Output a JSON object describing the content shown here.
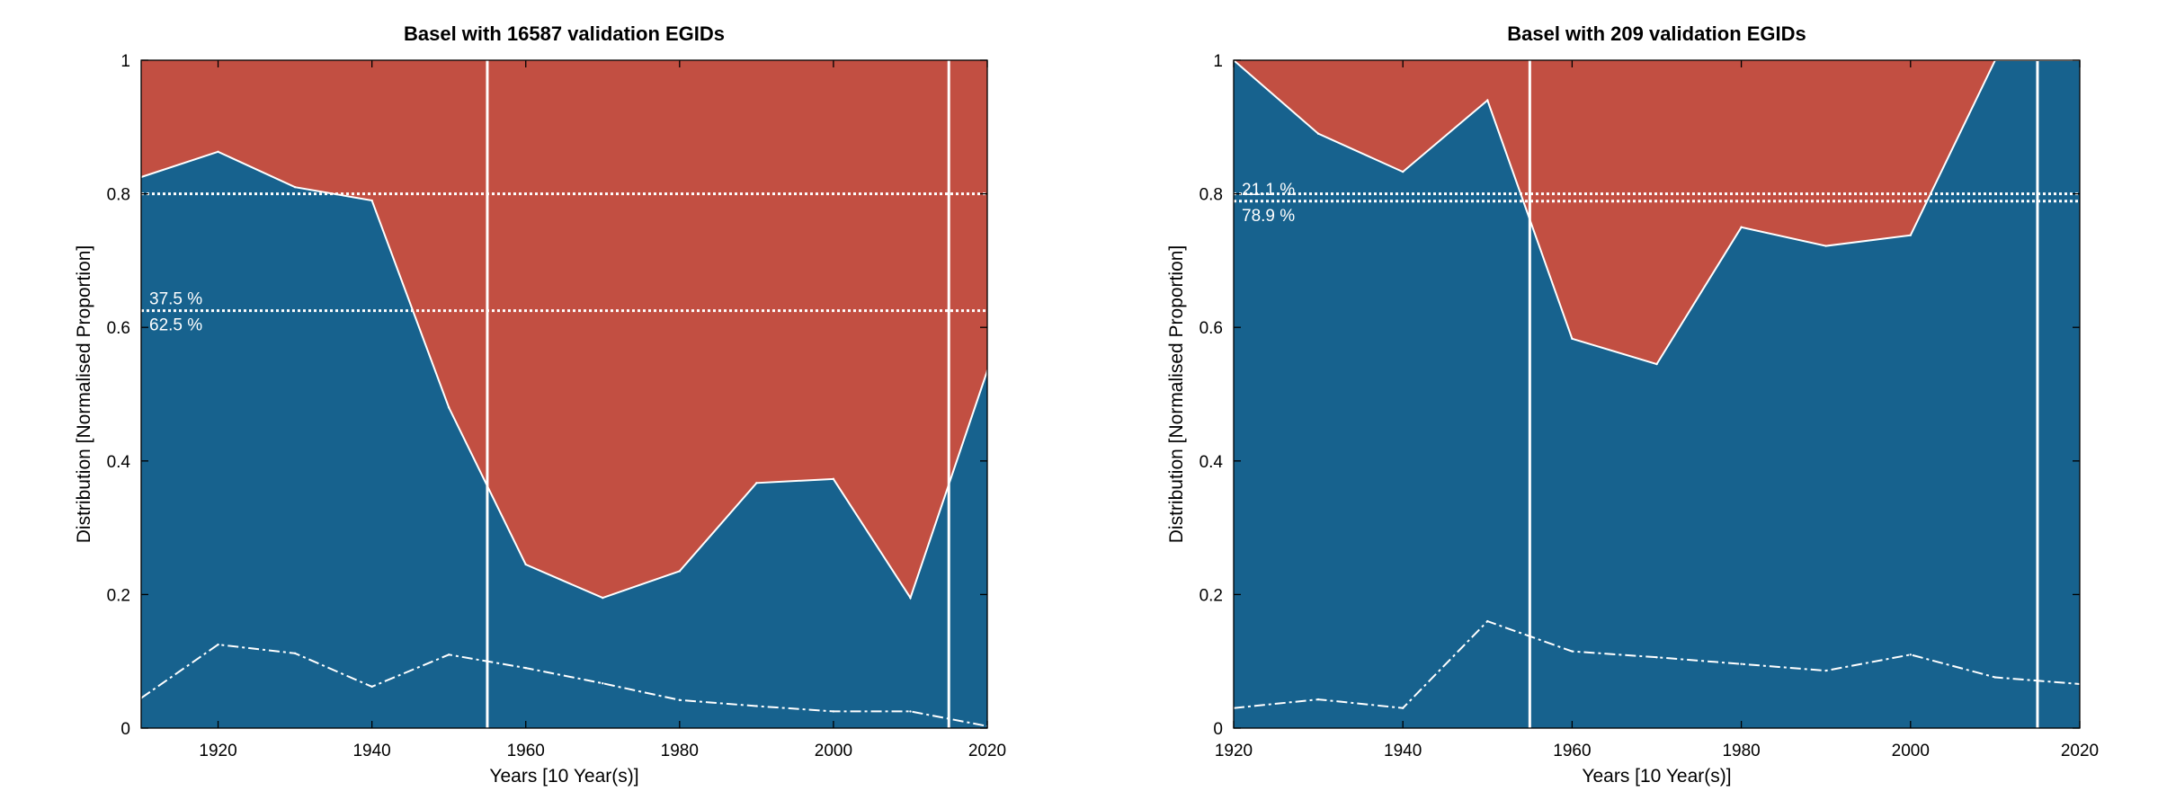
{
  "colors": {
    "lower_area": "#17628e",
    "upper_area": "#c24f42",
    "overlay_lines": "#ffffff"
  },
  "chart_data": [
    {
      "type": "area",
      "title": "Basel with 16587 validation EGIDs",
      "xlabel": "Years [10 Year(s)]",
      "ylabel": "Distribution [Normalised Proportion]",
      "xlim": [
        1910,
        2020
      ],
      "ylim": [
        0,
        1
      ],
      "x_ticks": [
        1920,
        1940,
        1960,
        1980,
        2000,
        2020
      ],
      "y_ticks": [
        0,
        0.2,
        0.4,
        0.6,
        0.8,
        1
      ],
      "y_tick_labels": [
        "0",
        "0.2",
        "0.4",
        "0.6",
        "0.8",
        "1"
      ],
      "x": [
        1910,
        1920,
        1930,
        1940,
        1950,
        1960,
        1970,
        1980,
        1990,
        2000,
        2010,
        2020
      ],
      "boundary": [
        0.825,
        0.863,
        0.81,
        0.79,
        0.48,
        0.245,
        0.195,
        0.235,
        0.367,
        0.373,
        0.195,
        0.535
      ],
      "dashed_line": [
        0.045,
        0.125,
        0.112,
        0.062,
        0.11,
        0.09,
        0.067,
        0.042,
        0.033,
        0.025,
        0.025,
        0.003
      ],
      "vertical_lines": [
        1955,
        2015
      ],
      "horizontal_dotted_lines": [
        0.8,
        0.625
      ],
      "percent_labels": {
        "upper": "37.5 %",
        "lower": "62.5 %"
      },
      "percent_label_y": 0.625
    },
    {
      "type": "area",
      "title": "Basel with 209 validation EGIDs",
      "xlabel": "Years [10 Year(s)]",
      "ylabel": "Distribution [Normalised Proportion]",
      "xlim": [
        1920,
        2020
      ],
      "ylim": [
        0,
        1
      ],
      "x_ticks": [
        1920,
        1940,
        1960,
        1980,
        2000,
        2020
      ],
      "y_ticks": [
        0,
        0.2,
        0.4,
        0.6,
        0.8,
        1
      ],
      "y_tick_labels": [
        "0",
        "0.2",
        "0.4",
        "0.6",
        "0.8",
        "1"
      ],
      "x": [
        1920,
        1930,
        1940,
        1950,
        1960,
        1970,
        1980,
        1990,
        2000,
        2010,
        2020
      ],
      "boundary": [
        1.0,
        0.89,
        0.833,
        0.94,
        0.583,
        0.545,
        0.75,
        0.722,
        0.738,
        1.0,
        1.0
      ],
      "dashed_line": [
        0.03,
        0.043,
        0.03,
        0.16,
        0.115,
        0.106,
        0.096,
        0.086,
        0.11,
        0.076,
        0.066
      ],
      "vertical_lines": [
        1955,
        2015
      ],
      "horizontal_dotted_lines": [
        0.8,
        0.789
      ],
      "percent_labels": {
        "upper": "21.1 %",
        "lower": "78.9 %"
      },
      "percent_label_y": 0.789
    }
  ]
}
